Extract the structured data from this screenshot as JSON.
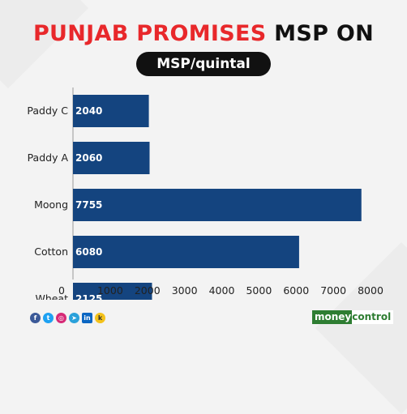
{
  "header": {
    "title_part1": "PUNJAB PROMISES",
    "title_part2": "MSP ON",
    "unit_pill": "MSP/quintal"
  },
  "chart_data": {
    "type": "bar",
    "orientation": "horizontal",
    "categories": [
      "Paddy C",
      "Paddy A",
      "Moong",
      "Cotton",
      "Wheat"
    ],
    "values": [
      2040,
      2060,
      7755,
      6080,
      2125
    ],
    "xlim": [
      0,
      8000
    ],
    "xticks": [
      0,
      1000,
      2000,
      3000,
      4000,
      5000,
      6000,
      7000,
      8000
    ],
    "grid": false,
    "bar_color": "#14447f"
  },
  "footer": {
    "social_icons": [
      "facebook-icon",
      "twitter-icon",
      "instagram-icon",
      "telegram-icon",
      "linkedin-icon",
      "koo-icon"
    ],
    "logo_money": "money",
    "logo_control": "control"
  }
}
